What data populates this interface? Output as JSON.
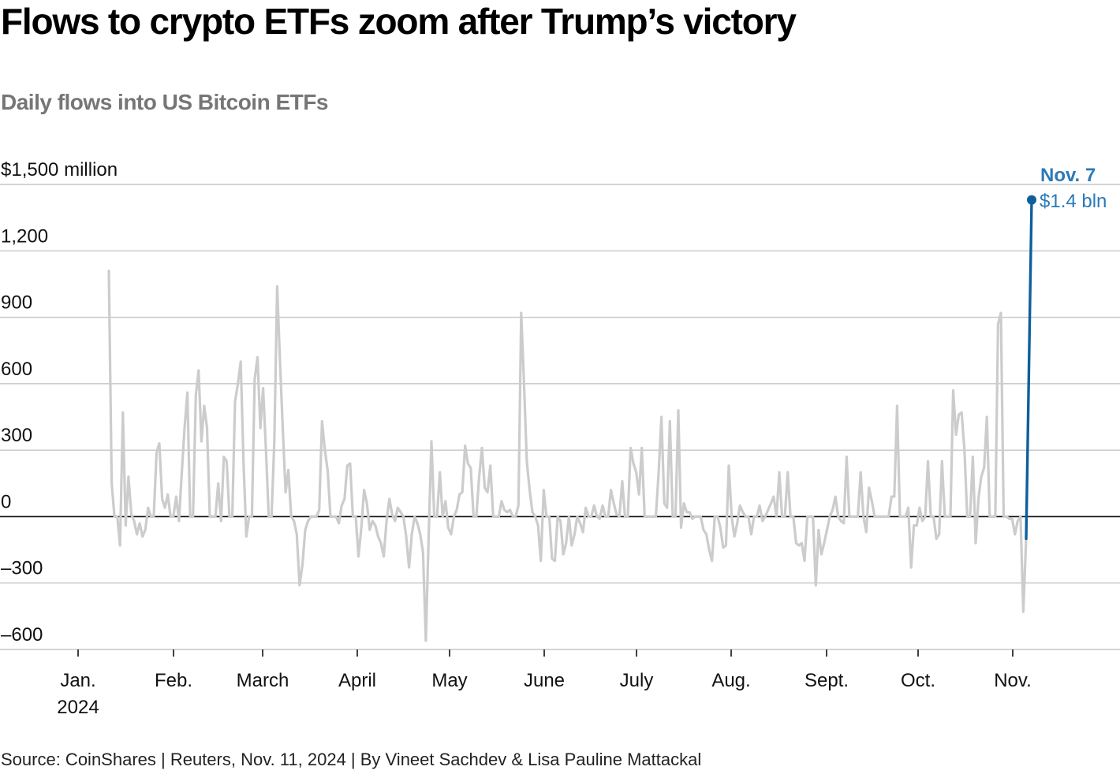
{
  "chart_data": {
    "type": "line",
    "title": "Flows to crypto ETFs zoom after Trump’s victory",
    "subtitle": "Daily flows into US Bitcoin ETFs",
    "ylabel": "",
    "xlabel": "",
    "ylim": [
      -600,
      1500
    ],
    "y_ticks": [
      {
        "value": 1500,
        "label": "$1,500 million"
      },
      {
        "value": 1200,
        "label": "1,200"
      },
      {
        "value": 900,
        "label": "900"
      },
      {
        "value": 600,
        "label": "600"
      },
      {
        "value": 300,
        "label": "300"
      },
      {
        "value": 0,
        "label": "0"
      },
      {
        "value": -300,
        "label": "–300"
      },
      {
        "value": -600,
        "label": "–600"
      }
    ],
    "x_ticks": [
      {
        "label": "Jan.",
        "sublabel": "2024"
      },
      {
        "label": "Feb."
      },
      {
        "label": "March"
      },
      {
        "label": "April"
      },
      {
        "label": "May"
      },
      {
        "label": "June"
      },
      {
        "label": "July"
      },
      {
        "label": "Aug."
      },
      {
        "label": "Sept."
      },
      {
        "label": "Oct."
      },
      {
        "label": "Nov."
      }
    ],
    "grid": true,
    "series": [
      {
        "name": "Daily flows into US Bitcoin ETFs",
        "color": "#cccccc",
        "values": [
          1110,
          150,
          0,
          0,
          -130,
          470,
          -40,
          180,
          10,
          -20,
          -80,
          -30,
          -90,
          -60,
          40,
          0,
          0,
          290,
          330,
          80,
          40,
          100,
          0,
          0,
          90,
          -20,
          200,
          400,
          560,
          0,
          0,
          550,
          660,
          340,
          500,
          400,
          0,
          0,
          0,
          150,
          -20,
          270,
          250,
          0,
          0,
          520,
          600,
          700,
          250,
          -90,
          0,
          0,
          620,
          720,
          400,
          580,
          300,
          0,
          0,
          340,
          1040,
          700,
          400,
          110,
          210,
          0,
          -20,
          -80,
          -310,
          -220,
          -60,
          -20,
          0,
          0,
          0,
          30,
          430,
          300,
          210,
          0,
          0,
          0,
          -30,
          50,
          80,
          230,
          240,
          0,
          0,
          -180,
          -50,
          120,
          60,
          -60,
          -20,
          -40,
          -90,
          -120,
          -180,
          -20,
          80,
          10,
          -20,
          40,
          20,
          0,
          -90,
          -230,
          -80,
          0,
          -30,
          -80,
          -160,
          -560,
          -100,
          340,
          0,
          0,
          200,
          0,
          70,
          -50,
          -80,
          0,
          30,
          100,
          110,
          320,
          240,
          220,
          0,
          0,
          180,
          310,
          130,
          110,
          230,
          0,
          0,
          0,
          70,
          30,
          20,
          30,
          0,
          0,
          50,
          920,
          600,
          250,
          120,
          20,
          0,
          -40,
          -200,
          120,
          0,
          0,
          -190,
          -200,
          0,
          -20,
          -170,
          -120,
          0,
          -130,
          -80,
          0,
          -30,
          -70,
          40,
          0,
          0,
          50,
          0,
          -10,
          50,
          0,
          0,
          120,
          60,
          10,
          0,
          160,
          0,
          0,
          310,
          240,
          200,
          100,
          310,
          0,
          0,
          0,
          0,
          0,
          200,
          450,
          60,
          40,
          430,
          0,
          0,
          480,
          -50,
          60,
          20,
          20,
          -10,
          0,
          0,
          0,
          -60,
          -80,
          -150,
          -200,
          0,
          0,
          -50,
          -140,
          -130,
          230,
          0,
          -90,
          -30,
          50,
          20,
          0,
          0,
          -80,
          0,
          0,
          50,
          -20,
          0,
          30,
          60,
          90,
          0,
          200,
          0,
          0,
          200,
          0,
          0,
          -120,
          -130,
          -120,
          -200,
          0,
          0,
          0,
          -310,
          -60,
          -170,
          -120,
          -60,
          0,
          30,
          90,
          0,
          -20,
          -30,
          270,
          0,
          0,
          0,
          0,
          200,
          0,
          -70,
          130,
          70,
          0,
          0,
          0,
          0,
          0,
          0,
          90,
          90,
          500,
          0,
          0,
          0,
          40,
          -230,
          -40,
          -40,
          40,
          -20,
          0,
          250,
          0,
          0,
          -100,
          -80,
          250,
          0,
          0,
          0,
          570,
          370,
          460,
          470,
          300,
          0,
          0,
          270,
          -120,
          80,
          180,
          220,
          450,
          0,
          0,
          0,
          870,
          920,
          0,
          0,
          -10,
          -10,
          -80,
          -20,
          0,
          -430,
          -100
        ],
        "value_format": "$M"
      },
      {
        "name": "Nov. 6 – Nov. 7",
        "color": "#0e5f9c",
        "values": [
          -100,
          1430
        ]
      }
    ],
    "annotations": [
      {
        "date_label": "Nov. 7",
        "value_label": "$1.4 bln",
        "value": 1430
      }
    ]
  },
  "source": "Source: CoinShares | Reuters, Nov. 11, 2024 | By Vineet Sachdev & Lisa Pauline Mattackal",
  "colors": {
    "series": "#cccccc",
    "highlight": "#0e5f9c",
    "annotation": "#2a7ab8",
    "grid": "#c6c6c6",
    "zero_line": "#111111"
  }
}
